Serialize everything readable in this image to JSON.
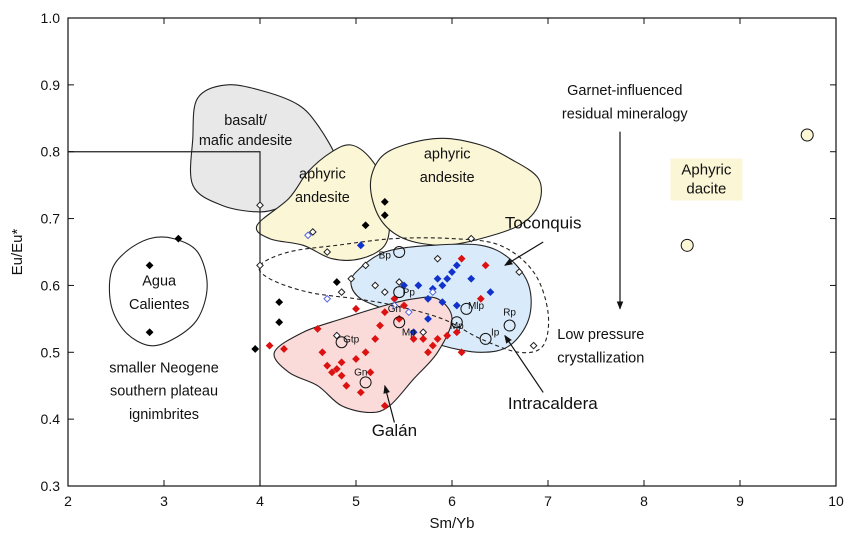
{
  "chart_data": {
    "type": "scatter",
    "xlabel": "Sm/Yb",
    "ylabel": "Eu/Eu*",
    "xlim": [
      2,
      10
    ],
    "ylim": [
      0.3,
      1.0
    ],
    "xticks": [
      "2",
      "3",
      "4",
      "5",
      "6",
      "7",
      "8",
      "9",
      "10"
    ],
    "yticks": [
      "0.3",
      "0.4",
      "0.5",
      "0.6",
      "0.7",
      "0.8",
      "0.9",
      "1.0"
    ],
    "grid": false,
    "fields": [
      {
        "name": "basalt-mafic-andesite",
        "fill": "#e8e8e8",
        "points": [
          [
            3.35,
            0.88
          ],
          [
            3.65,
            0.9
          ],
          [
            4.05,
            0.89
          ],
          [
            4.4,
            0.87
          ],
          [
            4.6,
            0.84
          ],
          [
            4.8,
            0.79
          ],
          [
            4.85,
            0.75
          ],
          [
            4.6,
            0.73
          ],
          [
            4.3,
            0.72
          ],
          [
            4.0,
            0.71
          ],
          [
            3.6,
            0.72
          ],
          [
            3.3,
            0.75
          ],
          [
            3.3,
            0.82
          ]
        ]
      },
      {
        "name": "aphyric-andesite-left",
        "fill": "#fbf6d6",
        "points": [
          [
            4.3,
            0.73
          ],
          [
            4.5,
            0.77
          ],
          [
            4.75,
            0.8
          ],
          [
            4.95,
            0.81
          ],
          [
            5.15,
            0.79
          ],
          [
            5.3,
            0.75
          ],
          [
            5.35,
            0.7
          ],
          [
            5.3,
            0.66
          ],
          [
            5.05,
            0.64
          ],
          [
            4.75,
            0.64
          ],
          [
            4.45,
            0.66
          ],
          [
            4.1,
            0.67
          ],
          [
            3.97,
            0.69
          ]
        ]
      },
      {
        "name": "aphyric-andesite-right",
        "fill": "#fbf6d6",
        "points": [
          [
            5.25,
            0.79
          ],
          [
            5.5,
            0.81
          ],
          [
            5.9,
            0.82
          ],
          [
            6.3,
            0.81
          ],
          [
            6.6,
            0.79
          ],
          [
            6.9,
            0.76
          ],
          [
            6.9,
            0.72
          ],
          [
            6.7,
            0.69
          ],
          [
            6.3,
            0.67
          ],
          [
            5.9,
            0.66
          ],
          [
            5.5,
            0.67
          ],
          [
            5.25,
            0.7
          ],
          [
            5.15,
            0.75
          ]
        ]
      },
      {
        "name": "toconquis",
        "fill": "#d9ebfa",
        "points": [
          [
            5.0,
            0.62
          ],
          [
            5.3,
            0.65
          ],
          [
            5.8,
            0.66
          ],
          [
            6.3,
            0.66
          ],
          [
            6.6,
            0.64
          ],
          [
            6.8,
            0.6
          ],
          [
            6.8,
            0.55
          ],
          [
            6.6,
            0.51
          ],
          [
            6.3,
            0.5
          ],
          [
            5.9,
            0.51
          ],
          [
            5.6,
            0.53
          ],
          [
            5.35,
            0.56
          ],
          [
            5.05,
            0.58
          ],
          [
            4.95,
            0.6
          ]
        ]
      },
      {
        "name": "galan",
        "fill": "#fbdada",
        "points": [
          [
            4.15,
            0.5
          ],
          [
            4.45,
            0.53
          ],
          [
            4.85,
            0.55
          ],
          [
            5.3,
            0.57
          ],
          [
            5.6,
            0.58
          ],
          [
            5.85,
            0.58
          ],
          [
            6.0,
            0.55
          ],
          [
            5.85,
            0.5
          ],
          [
            5.6,
            0.46
          ],
          [
            5.35,
            0.42
          ],
          [
            5.15,
            0.41
          ],
          [
            4.85,
            0.42
          ],
          [
            4.6,
            0.45
          ],
          [
            4.3,
            0.47
          ]
        ]
      },
      {
        "name": "agua-calientes",
        "fill": "none",
        "points": [
          [
            2.85,
            0.67
          ],
          [
            3.1,
            0.67
          ],
          [
            3.35,
            0.65
          ],
          [
            3.45,
            0.6
          ],
          [
            3.35,
            0.55
          ],
          [
            3.1,
            0.52
          ],
          [
            2.85,
            0.51
          ],
          [
            2.6,
            0.53
          ],
          [
            2.45,
            0.57
          ],
          [
            2.45,
            0.62
          ],
          [
            2.6,
            0.65
          ]
        ]
      }
    ],
    "intracaldera_boundary": [
      [
        4.0,
        0.63
      ],
      [
        4.3,
        0.65
      ],
      [
        4.8,
        0.66
      ],
      [
        5.4,
        0.67
      ],
      [
        6.0,
        0.67
      ],
      [
        6.5,
        0.66
      ],
      [
        6.85,
        0.62
      ],
      [
        7.0,
        0.56
      ],
      [
        6.95,
        0.51
      ],
      [
        6.7,
        0.5
      ],
      [
        6.3,
        0.52
      ],
      [
        5.9,
        0.55
      ],
      [
        5.4,
        0.57
      ],
      [
        5.0,
        0.58
      ],
      [
        4.5,
        0.59
      ],
      [
        4.1,
        0.61
      ]
    ],
    "field_labels": [
      {
        "text": "basalt/",
        "x": 3.85,
        "y": 0.84
      },
      {
        "text": "mafic andesite",
        "x": 3.85,
        "y": 0.81
      },
      {
        "text": "aphyric",
        "x": 4.65,
        "y": 0.76
      },
      {
        "text": "andesite",
        "x": 4.65,
        "y": 0.725
      },
      {
        "text": "aphyric",
        "x": 5.95,
        "y": 0.79
      },
      {
        "text": "andesite",
        "x": 5.95,
        "y": 0.755
      },
      {
        "text": "Agua",
        "x": 2.95,
        "y": 0.6
      },
      {
        "text": "Calientes",
        "x": 2.95,
        "y": 0.565
      },
      {
        "text": "Garnet-influenced",
        "x": 7.8,
        "y": 0.885
      },
      {
        "text": "residual mineralogy",
        "x": 7.8,
        "y": 0.85
      },
      {
        "text": "Low pressure",
        "x": 7.55,
        "y": 0.52
      },
      {
        "text": "crystallization",
        "x": 7.55,
        "y": 0.485
      },
      {
        "text": "smaller Neogene",
        "x": 3.0,
        "y": 0.47
      },
      {
        "text": "southern plateau",
        "x": 3.0,
        "y": 0.435
      },
      {
        "text": "ignimbrites",
        "x": 3.0,
        "y": 0.4
      },
      {
        "text": "Toconquis",
        "x": 6.95,
        "y": 0.685
      },
      {
        "text": "Intracaldera",
        "x": 7.05,
        "y": 0.415
      },
      {
        "text": "Galán",
        "x": 5.4,
        "y": 0.375
      }
    ],
    "aphyric_dacite_label": [
      "Aphyric",
      "dacite"
    ],
    "sample_labels": [
      {
        "text": "Bp",
        "x": 5.3,
        "y": 0.64
      },
      {
        "text": "Pp",
        "x": 5.55,
        "y": 0.585
      },
      {
        "text": "Gn",
        "x": 5.4,
        "y": 0.56
      },
      {
        "text": "Mlp",
        "x": 6.25,
        "y": 0.565
      },
      {
        "text": "Mp",
        "x": 6.05,
        "y": 0.535
      },
      {
        "text": "Mp",
        "x": 5.55,
        "y": 0.525
      },
      {
        "text": "Rp",
        "x": 6.6,
        "y": 0.555
      },
      {
        "text": "Ip",
        "x": 6.45,
        "y": 0.525
      },
      {
        "text": "Gtp",
        "x": 4.95,
        "y": 0.515
      },
      {
        "text": "Gn",
        "x": 5.05,
        "y": 0.465
      }
    ],
    "series": [
      {
        "name": "Toconquis",
        "color": "#1133cc",
        "marker": "diamond",
        "points": [
          [
            5.05,
            0.66
          ],
          [
            5.5,
            0.6
          ],
          [
            5.65,
            0.6
          ],
          [
            5.8,
            0.595
          ],
          [
            5.85,
            0.61
          ],
          [
            5.9,
            0.6
          ],
          [
            5.95,
            0.61
          ],
          [
            6.0,
            0.62
          ],
          [
            6.05,
            0.63
          ],
          [
            5.75,
            0.58
          ],
          [
            5.9,
            0.575
          ],
          [
            6.05,
            0.57
          ],
          [
            6.2,
            0.61
          ],
          [
            6.4,
            0.59
          ],
          [
            5.6,
            0.53
          ],
          [
            5.75,
            0.55
          ]
        ]
      },
      {
        "name": "Galán",
        "color": "#dd1111",
        "marker": "diamond",
        "points": [
          [
            4.1,
            0.51
          ],
          [
            4.25,
            0.505
          ],
          [
            4.6,
            0.535
          ],
          [
            4.65,
            0.5
          ],
          [
            4.7,
            0.48
          ],
          [
            4.75,
            0.47
          ],
          [
            4.8,
            0.475
          ],
          [
            4.85,
            0.485
          ],
          [
            4.85,
            0.465
          ],
          [
            4.9,
            0.45
          ],
          [
            5.0,
            0.49
          ],
          [
            5.1,
            0.5
          ],
          [
            5.15,
            0.47
          ],
          [
            5.2,
            0.52
          ],
          [
            5.25,
            0.54
          ],
          [
            5.3,
            0.56
          ],
          [
            5.4,
            0.58
          ],
          [
            5.45,
            0.55
          ],
          [
            5.5,
            0.57
          ],
          [
            5.6,
            0.52
          ],
          [
            5.7,
            0.52
          ],
          [
            5.75,
            0.5
          ],
          [
            5.8,
            0.51
          ],
          [
            5.85,
            0.52
          ],
          [
            5.95,
            0.525
          ],
          [
            6.05,
            0.53
          ],
          [
            6.1,
            0.5
          ],
          [
            6.3,
            0.58
          ],
          [
            6.35,
            0.63
          ],
          [
            6.1,
            0.64
          ],
          [
            5.05,
            0.44
          ],
          [
            5.3,
            0.42
          ],
          [
            5.0,
            0.565
          ]
        ]
      },
      {
        "name": "Intracaldera",
        "color": "#222222",
        "marker": "open-diamond",
        "points": [
          [
            4.0,
            0.72
          ],
          [
            4.0,
            0.63
          ],
          [
            4.55,
            0.68
          ],
          [
            4.7,
            0.65
          ],
          [
            4.85,
            0.59
          ],
          [
            4.95,
            0.61
          ],
          [
            5.1,
            0.63
          ],
          [
            5.2,
            0.6
          ],
          [
            5.3,
            0.59
          ],
          [
            5.45,
            0.605
          ],
          [
            5.85,
            0.64
          ],
          [
            6.2,
            0.67
          ],
          [
            6.7,
            0.62
          ],
          [
            6.85,
            0.51
          ],
          [
            5.7,
            0.53
          ],
          [
            4.8,
            0.525
          ]
        ]
      },
      {
        "name": "Other",
        "color": "#000000",
        "marker": "diamond",
        "points": [
          [
            2.85,
            0.63
          ],
          [
            2.85,
            0.53
          ],
          [
            3.15,
            0.67
          ],
          [
            3.95,
            0.505
          ],
          [
            4.2,
            0.545
          ],
          [
            4.2,
            0.575
          ],
          [
            4.8,
            0.605
          ],
          [
            5.1,
            0.69
          ],
          [
            5.3,
            0.705
          ],
          [
            5.3,
            0.725
          ]
        ]
      },
      {
        "name": "Blue open",
        "color": "#5566dd",
        "marker": "open-diamond",
        "points": [
          [
            4.5,
            0.675
          ],
          [
            4.7,
            0.58
          ],
          [
            5.4,
            0.57
          ],
          [
            5.8,
            0.59
          ],
          [
            5.55,
            0.56
          ]
        ]
      }
    ],
    "circled_samples": [
      [
        5.45,
        0.65
      ],
      [
        5.45,
        0.59
      ],
      [
        5.45,
        0.545
      ],
      [
        6.15,
        0.565
      ],
      [
        6.05,
        0.545
      ],
      [
        6.6,
        0.54
      ],
      [
        6.35,
        0.52
      ],
      [
        4.85,
        0.515
      ],
      [
        5.1,
        0.455
      ]
    ],
    "aphyric_dacite_points": [
      [
        8.45,
        0.66
      ],
      [
        9.7,
        0.825
      ]
    ]
  }
}
